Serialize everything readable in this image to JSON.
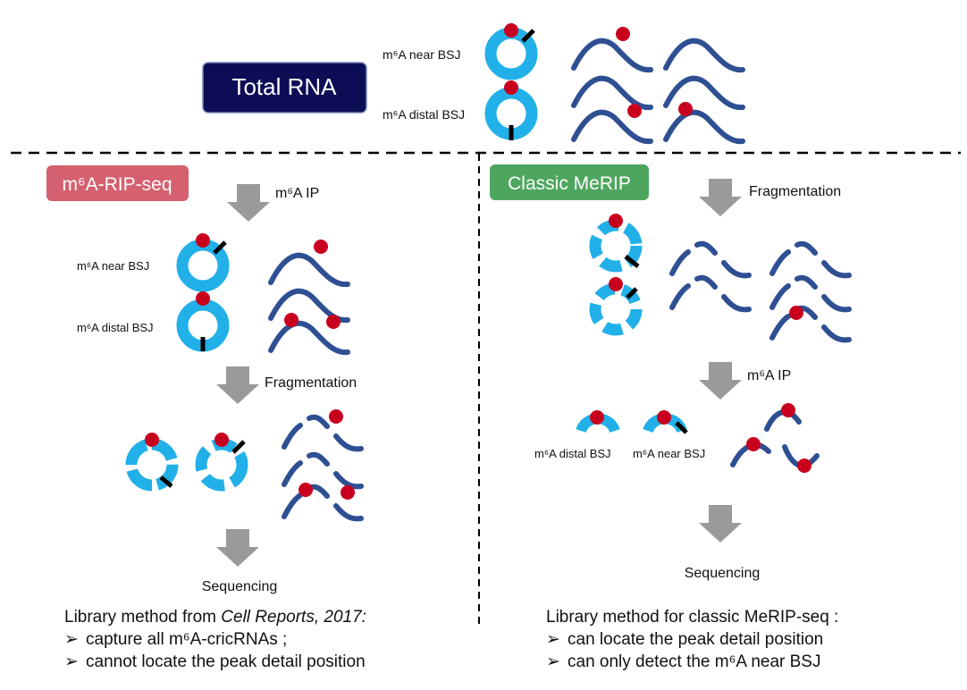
{
  "header": {
    "total_rna": "Total RNA",
    "near_bsj": "m⁶A near BSJ",
    "distal_bsj": "m⁶A distal BSJ"
  },
  "left": {
    "title": "m⁶A-RIP-seq",
    "step_ip": "m⁶A IP",
    "near_bsj": "m⁶A near BSJ",
    "distal_bsj": "m⁶A distal BSJ",
    "step_frag": "Fragmentation",
    "step_seq": "Sequencing",
    "note_title_prefix": "Library method from ",
    "note_title_source": "Cell Reports, 2017:",
    "bullet_1": "capture all m⁶A-cricRNAs ;",
    "bullet_2": "cannot locate the peak detail position"
  },
  "right": {
    "title": "Classic MeRIP",
    "step_frag": "Fragmentation",
    "step_ip": "m⁶A IP",
    "distal_bsj": "m⁶A distal BSJ",
    "near_bsj": "m⁶A near BSJ",
    "step_seq": "Sequencing",
    "note_title": "Library method for classic MeRIP-seq :",
    "bullet_1": "can locate the peak detail position",
    "bullet_2": "can only detect the m⁶A near BSJ"
  },
  "colors": {
    "circ_rna": "#22b0e8",
    "linear_rna": "#2f4f93",
    "m6a_site": "#c8001e",
    "bsj": "#000000",
    "arrow": "#9a9a9a",
    "total_box": "#0d0d55",
    "rip_box": "#d46070",
    "merip_box": "#4ea65e"
  },
  "bullet_symbol": "➢"
}
